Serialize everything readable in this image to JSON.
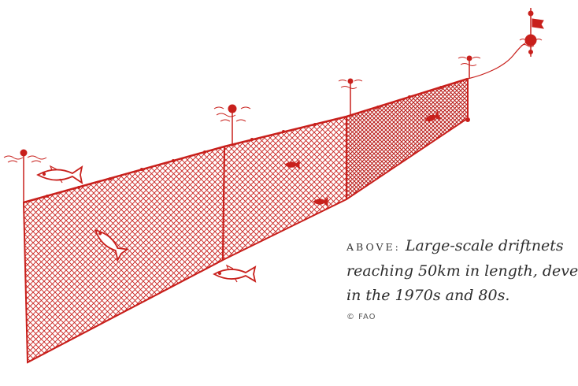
{
  "caption": {
    "label": "ABOVE:",
    "line1": "Large-scale driftnets",
    "line2": "reaching 50km in length, deve",
    "line3": "in the 1970s and 80s."
  },
  "credit": "© FAO",
  "colors": {
    "ink": "#c8201c",
    "text": "#2c2c2c"
  }
}
